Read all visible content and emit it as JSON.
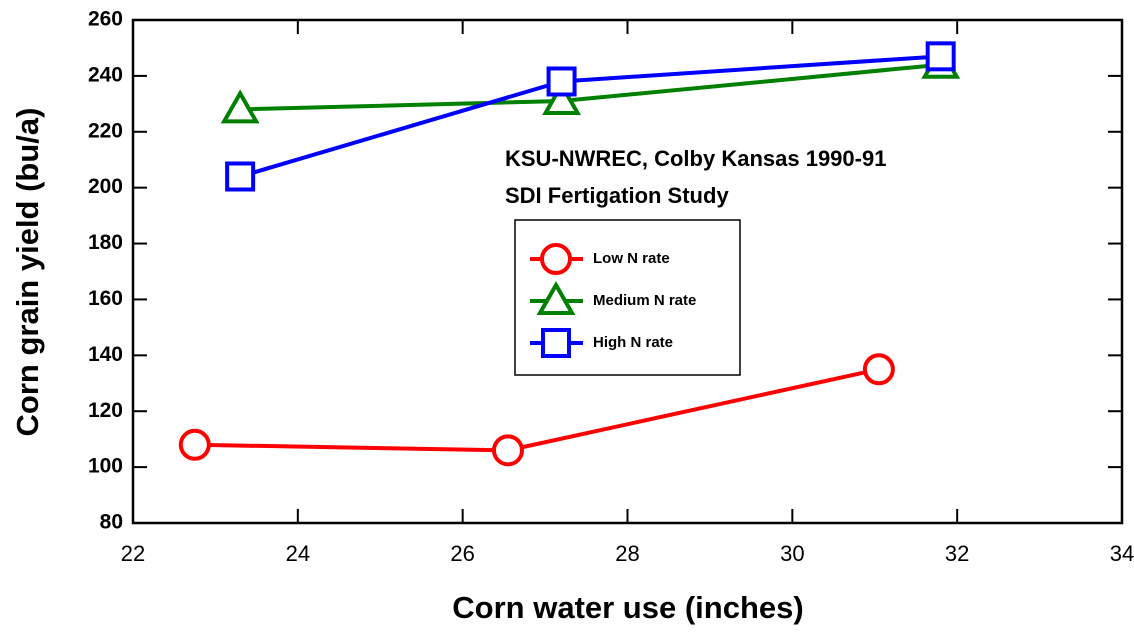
{
  "chart_data": {
    "type": "line",
    "x_label": "Corn water use (inches)",
    "y_label": "Corn grain yield (bu/a)",
    "annotations": [
      "KSU-NWREC, Colby Kansas 1990-91",
      "SDI Fertigation Study"
    ],
    "series": [
      {
        "name": "Low N rate",
        "color": "#ff0000",
        "marker": "circle",
        "x": [
          22.75,
          26.55,
          31.05
        ],
        "values": [
          108,
          106,
          135
        ]
      },
      {
        "name": "Medium N rate",
        "color": "#008000",
        "marker": "triangle",
        "x": [
          23.3,
          27.2,
          31.8
        ],
        "values": [
          228,
          231,
          244
        ]
      },
      {
        "name": "High N rate",
        "color": "#0000ff",
        "marker": "square",
        "x": [
          23.3,
          27.2,
          31.8
        ],
        "values": [
          204,
          238,
          247
        ]
      }
    ],
    "xlim": [
      22,
      34
    ],
    "xticks": [
      22,
      24,
      26,
      28,
      30,
      32,
      34
    ],
    "ylim": [
      80,
      260
    ],
    "yticks": [
      80,
      100,
      120,
      140,
      160,
      180,
      200,
      220,
      240,
      260
    ],
    "grid": false
  }
}
